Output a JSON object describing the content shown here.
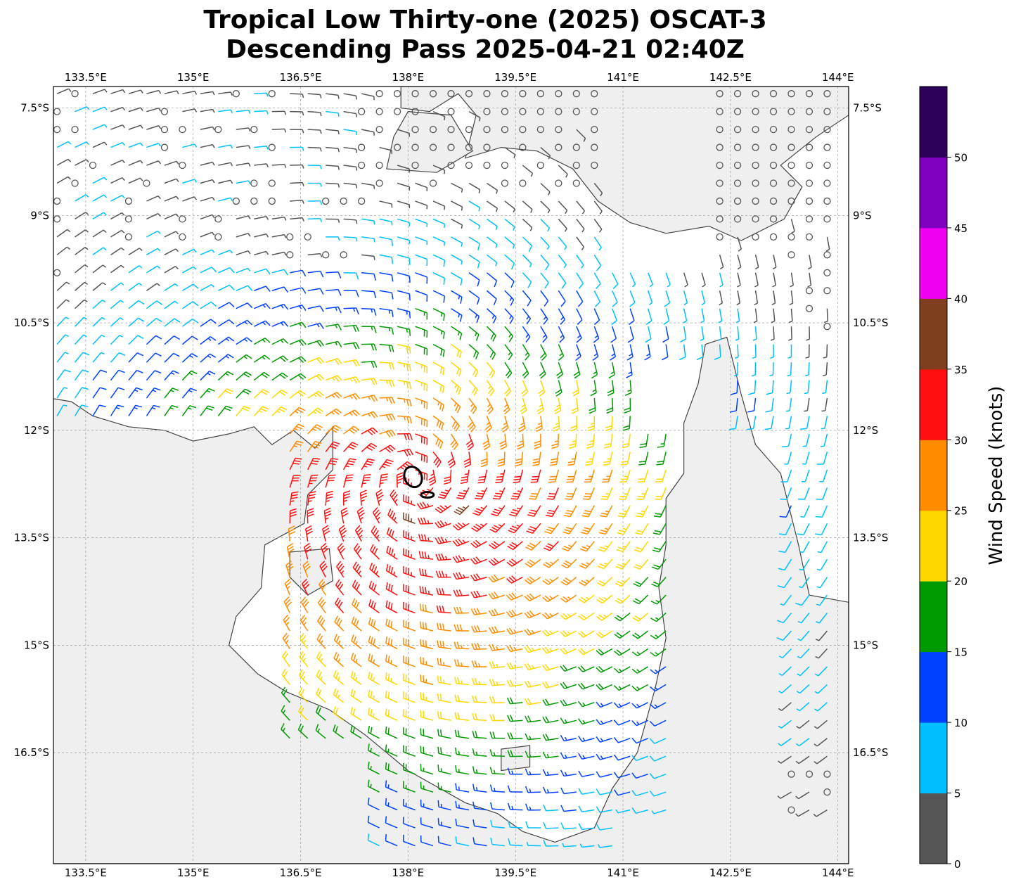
{
  "title_line1": "Tropical Low Thirty-one (2025) OSCAT-3",
  "title_line2": "Descending Pass 2025-04-21 02:40Z",
  "map": {
    "lon_range": [
      133.05,
      144.15
    ],
    "lat_range": [
      -18.05,
      -7.2
    ],
    "lon_ticks": [
      "133.5°E",
      "135°E",
      "136.5°E",
      "138°E",
      "139.5°E",
      "141°E",
      "142.5°E",
      "144°E"
    ],
    "lon_tick_values": [
      133.5,
      135,
      136.5,
      138,
      139.5,
      141,
      142.5,
      144
    ],
    "lat_ticks": [
      "7.5°S",
      "9°S",
      "10.5°S",
      "12°S",
      "13.5°S",
      "15°S",
      "16.5°S"
    ],
    "lat_tick_values": [
      -7.5,
      -9,
      -10.5,
      -12,
      -13.5,
      -15,
      -16.5
    ],
    "gridlines": true,
    "coastline_color": "#444444",
    "land_color": "#efefef",
    "ocean_color": "#ffffff",
    "center_marker_color": "#000000"
  },
  "colorbar": {
    "label": "Wind Speed (knots)",
    "ticks": [
      "0",
      "5",
      "10",
      "15",
      "20",
      "25",
      "30",
      "35",
      "40",
      "45",
      "50"
    ],
    "tick_values": [
      0,
      5,
      10,
      15,
      20,
      25,
      30,
      35,
      40,
      45,
      50
    ],
    "range": [
      0,
      55
    ],
    "bins": [
      {
        "from": 0,
        "to": 5,
        "color": "#555555"
      },
      {
        "from": 5,
        "to": 10,
        "color": "#00bfff"
      },
      {
        "from": 10,
        "to": 15,
        "color": "#0040ff"
      },
      {
        "from": 15,
        "to": 20,
        "color": "#009900"
      },
      {
        "from": 20,
        "to": 25,
        "color": "#ffd700"
      },
      {
        "from": 25,
        "to": 30,
        "color": "#ff8c00"
      },
      {
        "from": 30,
        "to": 35,
        "color": "#ff0f0f"
      },
      {
        "from": 35,
        "to": 40,
        "color": "#7f3f1f"
      },
      {
        "from": 40,
        "to": 45,
        "color": "#f000f0"
      },
      {
        "from": 45,
        "to": 50,
        "color": "#8000c0"
      },
      {
        "from": 50,
        "to": 55,
        "color": "#2d0059"
      }
    ]
  },
  "wind_field": {
    "type": "barbs",
    "center_lon": 138.1,
    "center_lat": -12.7,
    "max_speed_knots": 34
  }
}
